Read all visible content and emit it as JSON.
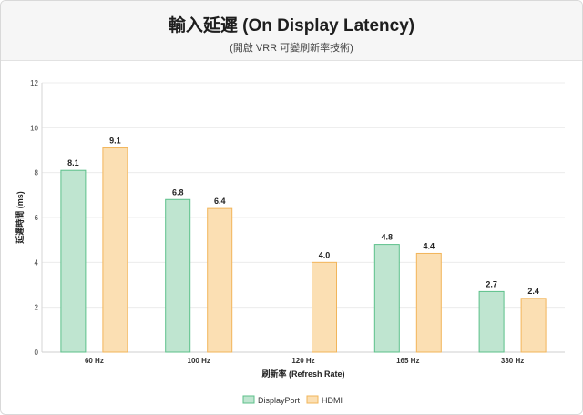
{
  "header": {
    "title": "輸入延遲 (On Display Latency)",
    "subtitle": "(開啟 VRR 可變刷新率技術)"
  },
  "chart_data": {
    "type": "bar",
    "categories": [
      "60 Hz",
      "100 Hz",
      "120 Hz",
      "165 Hz",
      "330 Hz"
    ],
    "series": [
      {
        "name": "DisplayPort",
        "values": [
          8.1,
          6.8,
          null,
          4.8,
          2.7
        ],
        "color": "#bfe5d0",
        "stroke": "#5cc08a"
      },
      {
        "name": "HDMI",
        "values": [
          9.1,
          6.4,
          4.0,
          4.4,
          2.4
        ],
        "color": "#fbdfb3",
        "stroke": "#f2b55a"
      }
    ],
    "data_labels": [
      [
        "8.1",
        "6.8",
        "",
        "4.8",
        "2.7"
      ],
      [
        "9.1",
        "6.4",
        "4.0",
        "4.4",
        "2.4"
      ]
    ],
    "xlabel": "刷新率 (Refresh Rate)",
    "ylabel": "延遲時間 (ms)",
    "ylim": [
      0,
      12
    ],
    "yticks": [
      "0",
      "2",
      "4",
      "6",
      "8",
      "10",
      "12"
    ],
    "grid": true,
    "legend": "bottom-center"
  }
}
